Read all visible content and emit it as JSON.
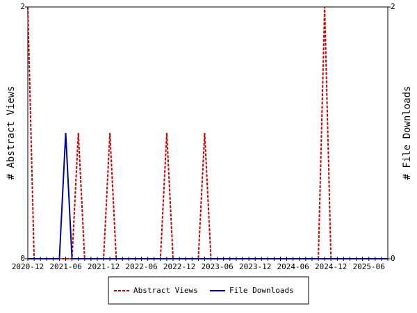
{
  "chart_data": {
    "type": "line",
    "categories": [
      "2020-12",
      null,
      null,
      null,
      null,
      null,
      "2021-06",
      null,
      null,
      null,
      null,
      null,
      "2021-12",
      null,
      null,
      null,
      null,
      null,
      "2022-06",
      null,
      null,
      null,
      null,
      null,
      "2022-12",
      null,
      null,
      null,
      null,
      null,
      "2023-06",
      null,
      null,
      null,
      null,
      null,
      "2023-12",
      null,
      null,
      null,
      null,
      null,
      "2024-06",
      null,
      null,
      null,
      null,
      null,
      "2024-12",
      null,
      null,
      null,
      null,
      null,
      "2025-06",
      null,
      null,
      null
    ],
    "series": [
      {
        "name": "Abstract Views",
        "color": "#cc0000",
        "dashed": true,
        "values": [
          2,
          0,
          0,
          0,
          0,
          0,
          0,
          0,
          1,
          0,
          0,
          0,
          0,
          1,
          0,
          0,
          0,
          0,
          0,
          0,
          0,
          0,
          1,
          0,
          0,
          0,
          0,
          0,
          1,
          0,
          0,
          0,
          0,
          0,
          0,
          0,
          0,
          0,
          0,
          0,
          0,
          0,
          0,
          0,
          0,
          0,
          0,
          2,
          0,
          0,
          0,
          0,
          0,
          0,
          0,
          0,
          0,
          0
        ]
      },
      {
        "name": "File Downloads",
        "color": "#0000aa",
        "dashed": false,
        "axis": "y2",
        "values": [
          0,
          0,
          0,
          0,
          0,
          0,
          1,
          0,
          0,
          0,
          0,
          0,
          0,
          0,
          0,
          0,
          0,
          0,
          0,
          0,
          0,
          0,
          0,
          0,
          0,
          0,
          0,
          0,
          0,
          0,
          0,
          0,
          0,
          0,
          0,
          0,
          0,
          0,
          0,
          0,
          0,
          0,
          0,
          0,
          0,
          0,
          0,
          0,
          0,
          0,
          0,
          0,
          0,
          0,
          0,
          0,
          0,
          0
        ]
      }
    ],
    "ylabel": "# Abstract Views",
    "y2label": "# File Downloads",
    "ylim": [
      0,
      2
    ],
    "yticks": [
      0,
      2
    ],
    "y2lim": [
      0,
      2
    ],
    "y2ticks": [
      0,
      2
    ]
  }
}
